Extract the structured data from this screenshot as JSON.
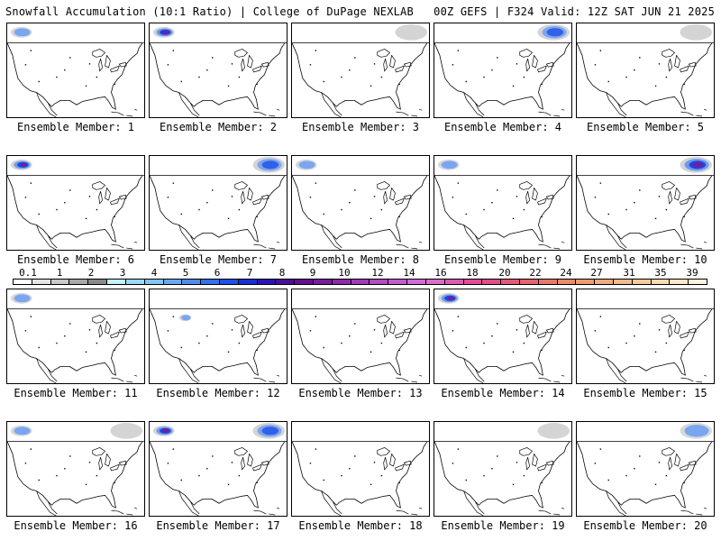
{
  "header": {
    "left": "Snowfall Accumulation (10:1 Ratio) | College of DuPage NEXLAB",
    "right": "00Z GEFS | F324 Valid: 12Z SAT JUN 21 2025"
  },
  "member_prefix": "Ensemble Member:",
  "members": [
    {
      "label": "Ensemble Member: 1",
      "snow": [
        {
          "region": "northwest",
          "intensity": "light"
        }
      ]
    },
    {
      "label": "Ensemble Member: 2",
      "snow": [
        {
          "region": "northwest",
          "intensity": "heavy"
        }
      ]
    },
    {
      "label": "Ensemble Member: 3",
      "snow": [
        {
          "region": "northeast",
          "intensity": "trace"
        }
      ]
    },
    {
      "label": "Ensemble Member: 4",
      "snow": [
        {
          "region": "northeast",
          "intensity": "moderate"
        }
      ]
    },
    {
      "label": "Ensemble Member: 5",
      "snow": [
        {
          "region": "northeast",
          "intensity": "trace"
        }
      ]
    },
    {
      "label": "Ensemble Member: 6",
      "snow": [
        {
          "region": "northwest",
          "intensity": "heavy"
        }
      ]
    },
    {
      "label": "Ensemble Member: 7",
      "snow": [
        {
          "region": "northeast",
          "intensity": "moderate"
        }
      ]
    },
    {
      "label": "Ensemble Member: 8",
      "snow": [
        {
          "region": "northwest",
          "intensity": "light"
        }
      ]
    },
    {
      "label": "Ensemble Member: 9",
      "snow": [
        {
          "region": "northwest",
          "intensity": "light"
        }
      ]
    },
    {
      "label": "Ensemble Member: 10",
      "snow": [
        {
          "region": "northeast",
          "intensity": "heavy"
        }
      ]
    },
    {
      "label": "Ensemble Member: 11",
      "snow": [
        {
          "region": "northwest",
          "intensity": "light"
        }
      ]
    },
    {
      "label": "Ensemble Member: 12",
      "snow": [
        {
          "region": "west",
          "intensity": "light"
        }
      ]
    },
    {
      "label": "Ensemble Member: 13",
      "snow": []
    },
    {
      "label": "Ensemble Member: 14",
      "snow": [
        {
          "region": "northwest",
          "intensity": "heavy"
        }
      ]
    },
    {
      "label": "Ensemble Member: 15",
      "snow": []
    },
    {
      "label": "Ensemble Member: 16",
      "snow": [
        {
          "region": "northeast",
          "intensity": "trace"
        },
        {
          "region": "northwest",
          "intensity": "light"
        }
      ]
    },
    {
      "label": "Ensemble Member: 17",
      "snow": [
        {
          "region": "northwest",
          "intensity": "heavy"
        },
        {
          "region": "northeast",
          "intensity": "moderate"
        }
      ]
    },
    {
      "label": "Ensemble Member: 18",
      "snow": []
    },
    {
      "label": "Ensemble Member: 19",
      "snow": [
        {
          "region": "northeast",
          "intensity": "trace"
        }
      ]
    },
    {
      "label": "Ensemble Member: 20",
      "snow": [
        {
          "region": "northeast",
          "intensity": "light"
        }
      ]
    }
  ],
  "colorbar": {
    "ticks": [
      "0.1",
      "1",
      "2",
      "3",
      "4",
      "5",
      "6",
      "7",
      "8",
      "9",
      "10",
      "12",
      "14",
      "16",
      "18",
      "20",
      "22",
      "24",
      "27",
      "31",
      "35",
      "39"
    ],
    "colors": [
      "#ffffff",
      "#e4e4e4",
      "#c8c8c8",
      "#a8a8a8",
      "#8a8a8a",
      "#c4f0f8",
      "#9ed8f4",
      "#84c4f4",
      "#6aa8f0",
      "#4e8cee",
      "#3470ec",
      "#1e50ea",
      "#1a2cd8",
      "#2a14b8",
      "#4a0e98",
      "#621090",
      "#781c9c",
      "#8e2ca8",
      "#a03cb4",
      "#b24cc0",
      "#c45ccc",
      "#d06cd8",
      "#d870c4",
      "#dc5cb0",
      "#e04c9c",
      "#e24c88",
      "#e45878",
      "#e6646c",
      "#e87868",
      "#ea8c6c",
      "#ec9c74",
      "#eeac80",
      "#f0bc8c",
      "#f4cc9c",
      "#f8dcb0",
      "#fbe8c8",
      "#fdf2e0"
    ]
  }
}
